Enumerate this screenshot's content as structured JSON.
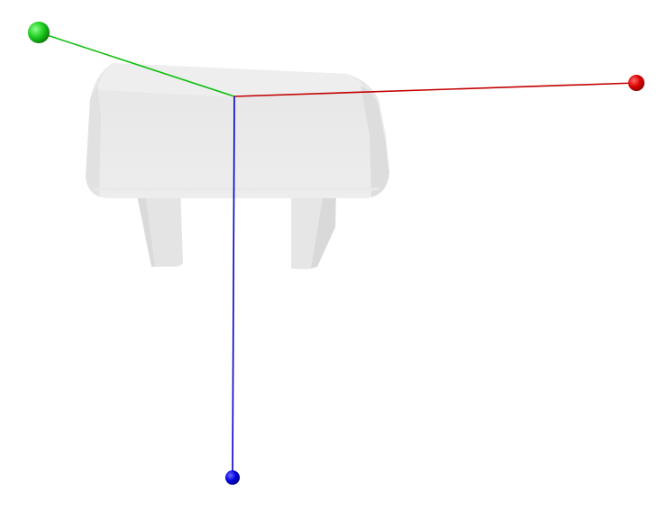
{
  "scene": {
    "object": "semi-transparent-block-with-two-legs",
    "background_color": "#ffffff",
    "object_color": "#e3e3e3",
    "axes": [
      {
        "name": "x-axis",
        "color": "#cc0000"
      },
      {
        "name": "y-axis",
        "color": "#00bb00"
      },
      {
        "name": "z-axis",
        "color": "#0000cc"
      }
    ]
  }
}
